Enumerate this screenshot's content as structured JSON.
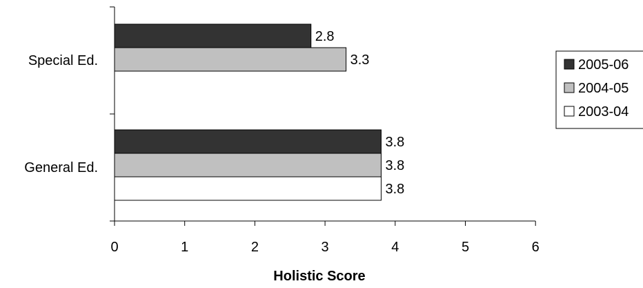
{
  "chart_data": {
    "type": "bar",
    "orientation": "horizontal",
    "title": "",
    "xlabel": "Holistic Score",
    "ylabel": "",
    "xlim": [
      0,
      6
    ],
    "x_ticks": [
      "0",
      "1",
      "2",
      "3",
      "4",
      "5",
      "6"
    ],
    "grid": false,
    "legend_position": "right",
    "categories": [
      "Special Ed.",
      "General Ed."
    ],
    "series": [
      {
        "name": "2005-06",
        "color": "#333333",
        "values": [
          2.8,
          3.8
        ],
        "labels": [
          "2.8",
          "3.8"
        ]
      },
      {
        "name": "2004-05",
        "color": "#c0c0c0",
        "values": [
          3.3,
          3.8
        ],
        "labels": [
          "3.3",
          "3.8"
        ]
      },
      {
        "name": "2003-04",
        "color": "#ffffff",
        "values": [
          null,
          3.8
        ],
        "labels": [
          "",
          "3.8"
        ]
      }
    ]
  }
}
